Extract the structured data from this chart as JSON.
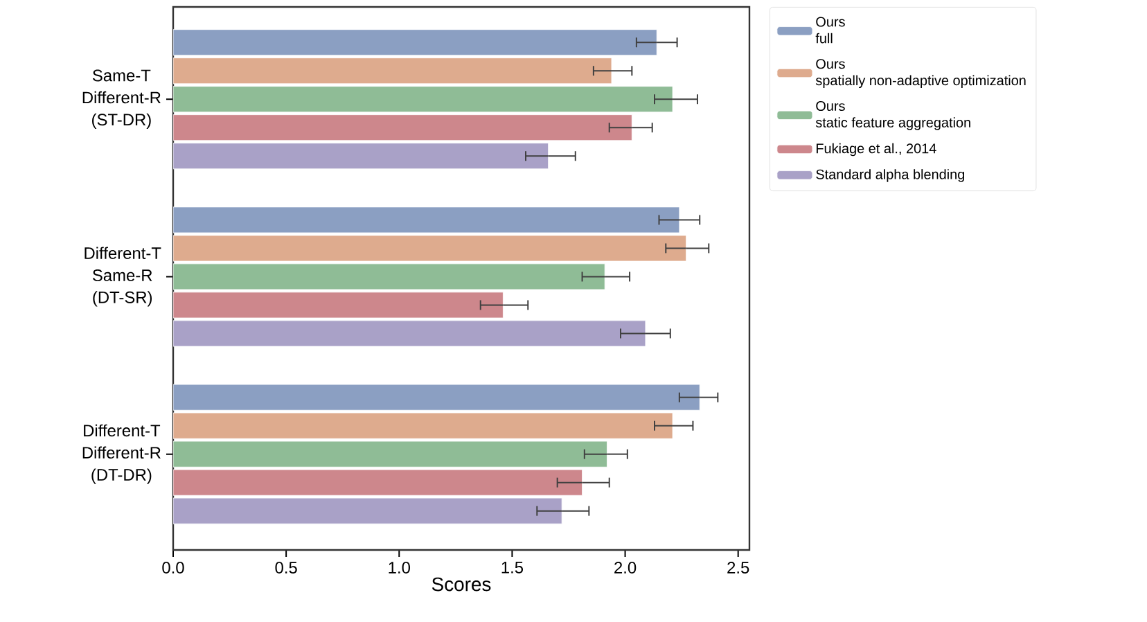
{
  "chart_data": {
    "type": "bar",
    "orientation": "horizontal",
    "xlabel": "Scores",
    "categories": [
      "Same-T\nDifferent-R\n(ST-DR)",
      "Different-T\nSame-R\n(DT-SR)",
      "Different-T\nDifferent-R\n(DT-DR)"
    ],
    "xlim": [
      0,
      2.55
    ],
    "xticks": [
      {
        "value": 0,
        "label": "0.0"
      },
      0.5,
      {
        "value": 1,
        "label": "1.0"
      },
      1.5,
      {
        "value": 2,
        "label": "2.0"
      },
      2.5
    ],
    "legend": "right",
    "series": [
      {
        "name": "Ours\nfull",
        "color": "#8b9fc2",
        "values": [
          2.14,
          2.24,
          2.33
        ],
        "errors": [
          [
            2.05,
            2.23
          ],
          [
            2.15,
            2.33
          ],
          [
            2.24,
            2.41
          ]
        ]
      },
      {
        "name": "Ours\nspatially non-adaptive optimization",
        "color": "#deab8e",
        "values": [
          1.94,
          2.27,
          2.21
        ],
        "errors": [
          [
            1.86,
            2.03
          ],
          [
            2.18,
            2.37
          ],
          [
            2.13,
            2.3
          ]
        ]
      },
      {
        "name": "Ours\nstatic feature aggregation",
        "color": "#8fbc96",
        "values": [
          2.21,
          1.91,
          1.92
        ],
        "errors": [
          [
            2.13,
            2.32
          ],
          [
            1.81,
            2.02
          ],
          [
            1.82,
            2.01
          ]
        ]
      },
      {
        "name": "Fukiage et al., 2014",
        "color": "#cd878c",
        "values": [
          2.03,
          1.46,
          1.81
        ],
        "errors": [
          [
            1.93,
            2.12
          ],
          [
            1.36,
            1.57
          ],
          [
            1.7,
            1.93
          ]
        ]
      },
      {
        "name": "Standard alpha blending",
        "color": "#a9a1c7",
        "values": [
          1.66,
          2.09,
          1.72
        ],
        "errors": [
          [
            1.56,
            1.78
          ],
          [
            1.98,
            2.2
          ],
          [
            1.61,
            1.84
          ]
        ]
      }
    ]
  }
}
